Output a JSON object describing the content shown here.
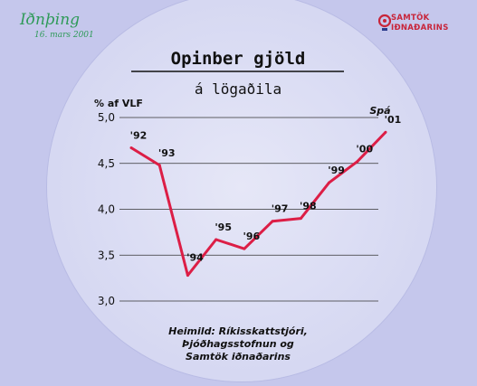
{
  "logos": {
    "left_script": "Iðnþing",
    "left_date": "16. mars 2001",
    "right_line1": "SAMTÖK",
    "right_line2": "IÐNAÐARINS"
  },
  "colors": {
    "background": "#c5c7ec",
    "line": "#dc1e46",
    "accent_green": "#2e9a58",
    "accent_red": "#c8253a"
  },
  "chart_data": {
    "type": "line",
    "title": "Opinber gjöld",
    "subtitle": "á lögaðila",
    "ylabel": "% af VLF",
    "ylim": [
      3.0,
      5.0
    ],
    "yticks": [
      "3,0",
      "3,5",
      "4,0",
      "4,5",
      "5,0"
    ],
    "ytick_values": [
      3.0,
      3.5,
      4.0,
      4.5,
      5.0
    ],
    "grid": true,
    "categories": [
      "'92",
      "'93",
      "'94",
      "'95",
      "'96",
      "'97",
      "'98",
      "'99",
      "'00",
      "'01"
    ],
    "values": [
      4.67,
      4.48,
      3.28,
      3.67,
      3.57,
      3.87,
      3.9,
      4.29,
      4.52,
      4.84
    ],
    "annotations": [
      "Spá"
    ],
    "source": [
      "Heimild: Ríkisskattstjóri,",
      "Þjóðhagsstofnun og",
      "Samtök iðnaðarins"
    ]
  }
}
